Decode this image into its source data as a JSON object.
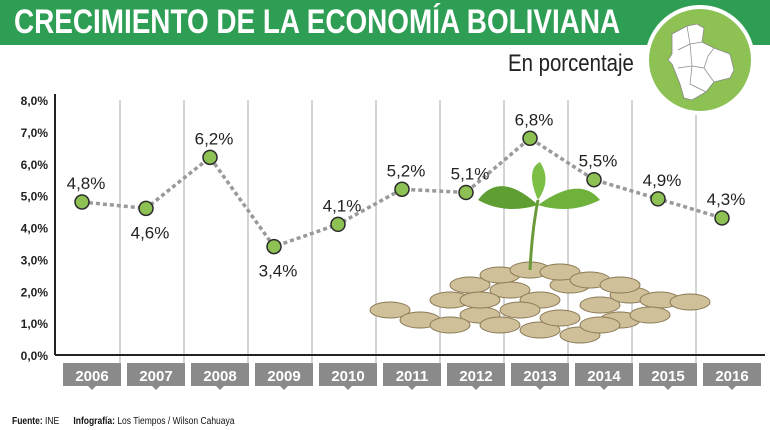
{
  "header": {
    "title": "CRECIMIENTO DE LA ECONOMÍA BOLIVIANA",
    "subtitle": "En porcentaje"
  },
  "footer": {
    "source_label": "Fuente:",
    "source": "INE",
    "credit_label": "Infografía:",
    "credit": "Los Tiempos / Wilson Cahuaya"
  },
  "colors": {
    "banner": "#2f9e55",
    "map_circle": "#8dc153",
    "point": "#8dc153",
    "line": "#9a9a9a",
    "year_box": "#8a8a8a"
  },
  "chart_data": {
    "type": "line",
    "title": "CRECIMIENTO DE LA ECONOMÍA BOLIVIANA",
    "subtitle": "En porcentaje",
    "categories": [
      "2006",
      "2007",
      "2008",
      "2009",
      "2010",
      "2011",
      "2012",
      "2013",
      "2014",
      "2015",
      "2016"
    ],
    "values": [
      4.8,
      4.6,
      6.2,
      3.4,
      4.1,
      5.2,
      5.1,
      6.8,
      5.5,
      4.9,
      4.3
    ],
    "data_labels": [
      "4,8%",
      "4,6%",
      "6,2%",
      "3,4%",
      "4,1%",
      "5,2%",
      "5,1%",
      "6,8%",
      "5,5%",
      "4,9%",
      "4,3%"
    ],
    "ylim": [
      0,
      8
    ],
    "yticks": [
      "0,0%",
      "1,0%",
      "2,0%",
      "3,0%",
      "4,0%",
      "5,0%",
      "6,0%",
      "7,0%",
      "8,0%"
    ],
    "xlabel": "",
    "ylabel": "",
    "grid": "vertical dividers"
  }
}
